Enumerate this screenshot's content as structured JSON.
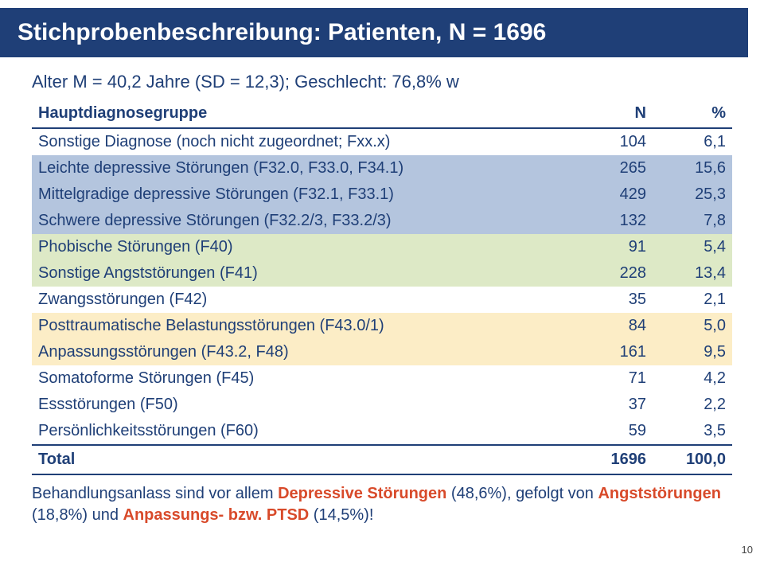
{
  "title": "Stichprobenbeschreibung: Patienten, N = 1696",
  "subtitle": "Alter M = 40,2 Jahre (SD = 12,3); Geschlecht: 76,8% w",
  "table": {
    "header": {
      "label": "Hauptdiagnosegruppe",
      "n": "N",
      "pct": "%"
    },
    "rows": [
      {
        "label": "Sonstige Diagnose (noch nicht zugeordnet; Fxx.x)",
        "n": "104",
        "pct": "6,1",
        "bg": "#ffffff"
      },
      {
        "label": "Leichte depressive Störungen (F32.0, F33.0, F34.1)",
        "n": "265",
        "pct": "15,6",
        "bg": "#b4c5de"
      },
      {
        "label": "Mittelgradige depressive Störungen (F32.1, F33.1)",
        "n": "429",
        "pct": "25,3",
        "bg": "#b4c5de"
      },
      {
        "label": "Schwere depressive Störungen (F32.2/3, F33.2/3)",
        "n": "132",
        "pct": "7,8",
        "bg": "#b4c5de"
      },
      {
        "label": "Phobische Störungen (F40)",
        "n": "91",
        "pct": "5,4",
        "bg": "#dde9c6"
      },
      {
        "label": "Sonstige Angststörungen (F41)",
        "n": "228",
        "pct": "13,4",
        "bg": "#dde9c6"
      },
      {
        "label": "Zwangsstörungen (F42)",
        "n": "35",
        "pct": "2,1",
        "bg": "#ffffff"
      },
      {
        "label": "Posttraumatische Belastungsstörungen (F43.0/1)",
        "n": "84",
        "pct": "5,0",
        "bg": "#fcedc6"
      },
      {
        "label": "Anpassungsstörungen (F43.2, F48)",
        "n": "161",
        "pct": "9,5",
        "bg": "#fcedc6"
      },
      {
        "label": "Somatoforme Störungen (F45)",
        "n": "71",
        "pct": "4,2",
        "bg": "#ffffff"
      },
      {
        "label": "Essstörungen (F50)",
        "n": "37",
        "pct": "2,2",
        "bg": "#ffffff"
      },
      {
        "label": "Persönlichkeitsstörungen (F60)",
        "n": "59",
        "pct": "3,5",
        "bg": "#ffffff"
      }
    ],
    "total": {
      "label": "Total",
      "n": "1696",
      "pct": "100,0"
    }
  },
  "summary": {
    "t1": "Behandlungsanlass sind vor allem ",
    "h1": "Depressive Störungen",
    "t2": " (48,6%), gefolgt von ",
    "h2": "Angststörungen",
    "t3": " (18,8%) und ",
    "h3": "Anpassungs- bzw. PTSD",
    "t4": " (14,5%)!"
  },
  "pagenum": "10"
}
